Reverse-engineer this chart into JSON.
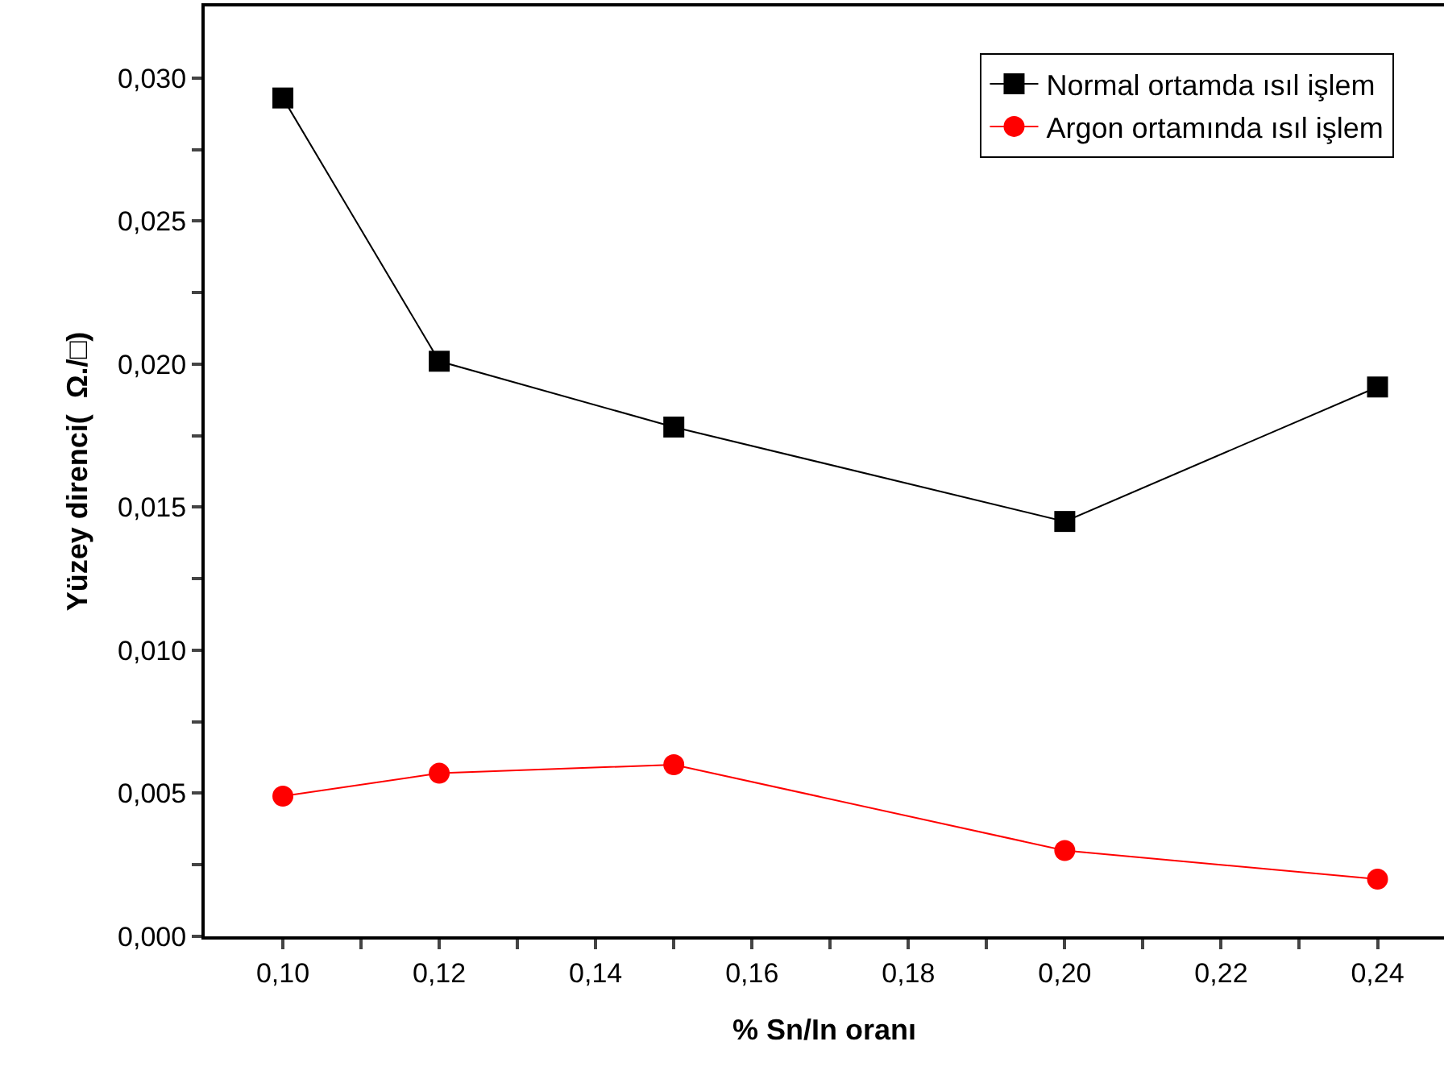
{
  "chart_data": {
    "type": "line",
    "xlabel": "% Sn/In oranı",
    "ylabel": "Yüzey direnci(  Ω./□)",
    "x": [
      0.1,
      0.12,
      0.15,
      0.2,
      0.24
    ],
    "series": [
      {
        "name": "Normal ortamda ısıl işlem",
        "color": "#000000",
        "marker": "square",
        "values": [
          0.0293,
          0.0201,
          0.0178,
          0.0145,
          0.0192
        ]
      },
      {
        "name": "Argon ortamında ısıl işlem",
        "color": "#ff0000",
        "marker": "circle",
        "values": [
          0.0049,
          0.0057,
          0.006,
          0.003,
          0.002
        ]
      }
    ],
    "xlim": [
      0.09,
      0.2485
    ],
    "ylim": [
      0,
      0.0325
    ],
    "xticks": [
      {
        "value": 0.1,
        "label": "0,10"
      },
      {
        "value": 0.11,
        "label": null
      },
      {
        "value": 0.12,
        "label": "0,12"
      },
      {
        "value": 0.13,
        "label": null
      },
      {
        "value": 0.14,
        "label": "0,14"
      },
      {
        "value": 0.15,
        "label": null
      },
      {
        "value": 0.16,
        "label": "0,16"
      },
      {
        "value": 0.17,
        "label": null
      },
      {
        "value": 0.18,
        "label": "0,18"
      },
      {
        "value": 0.19,
        "label": null
      },
      {
        "value": 0.2,
        "label": "0,20"
      },
      {
        "value": 0.21,
        "label": null
      },
      {
        "value": 0.22,
        "label": "0,22"
      },
      {
        "value": 0.23,
        "label": null
      },
      {
        "value": 0.24,
        "label": "0,24"
      }
    ],
    "yticks": [
      {
        "value": 0,
        "label": "0,000"
      },
      {
        "value": 0.0025,
        "label": null
      },
      {
        "value": 0.005,
        "label": "0,005"
      },
      {
        "value": 0.0075,
        "label": null
      },
      {
        "value": 0.01,
        "label": "0,010"
      },
      {
        "value": 0.0125,
        "label": null
      },
      {
        "value": 0.015,
        "label": "0,015"
      },
      {
        "value": 0.0175,
        "label": null
      },
      {
        "value": 0.02,
        "label": "0,020"
      },
      {
        "value": 0.0225,
        "label": null
      },
      {
        "value": 0.025,
        "label": "0,025"
      },
      {
        "value": 0.0275,
        "label": null
      },
      {
        "value": 0.03,
        "label": "0,030"
      }
    ],
    "grid": false,
    "legend": "top right",
    "line_style": "solid"
  }
}
